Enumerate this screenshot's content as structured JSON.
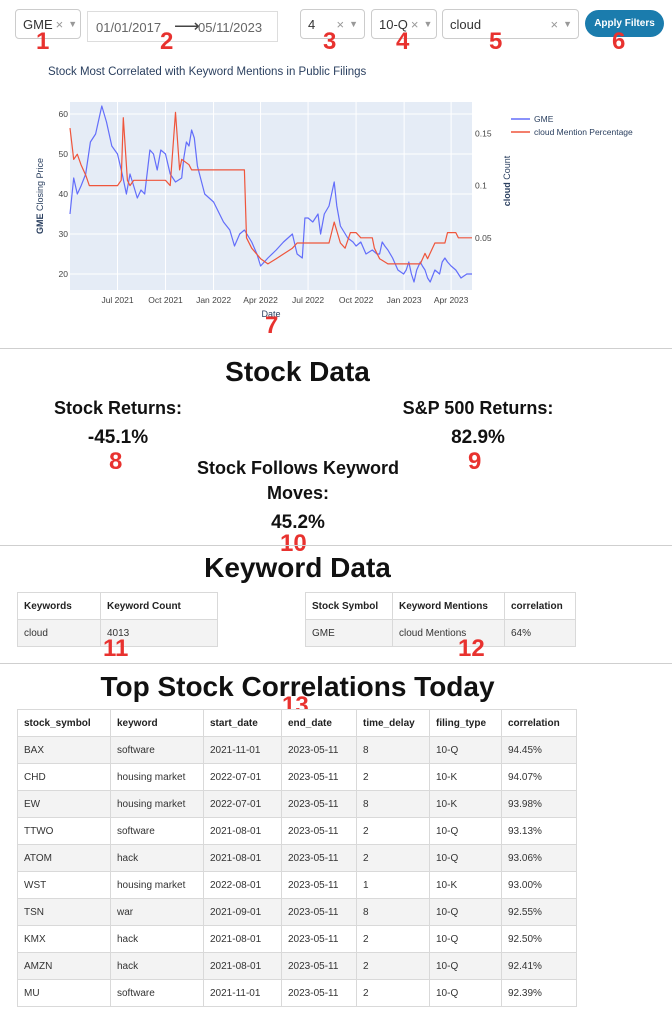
{
  "filters": {
    "ticker": "GME",
    "date_start": "01/01/2017",
    "date_end": "05/11/2023",
    "time_delay": "4",
    "filing_type": "10-Q",
    "keyword": "cloud",
    "apply_label": "Apply Filters"
  },
  "annotations": [
    "1",
    "2",
    "3",
    "4",
    "5",
    "6",
    "7",
    "8",
    "9",
    "10",
    "11",
    "12",
    "13"
  ],
  "chart": {
    "title": "Stock Most Correlated with Keyword Mentions in Public Filings",
    "xlabel": "Date",
    "ylabel_left": "GME Closing Price",
    "ylabel_right_bold": "cloud",
    "ylabel_right_rest": " Count",
    "legend": [
      "GME",
      "cloud Mention Percentage"
    ],
    "colors": {
      "gme": "#636efa",
      "cloud": "#ef553b",
      "plot_bg": "#e5ecf6"
    }
  },
  "chart_data": {
    "type": "line",
    "x_ticks": [
      "Jul 2021",
      "Oct 2021",
      "Jan 2022",
      "Apr 2022",
      "Jul 2022",
      "Oct 2022",
      "Jan 2023",
      "Apr 2023"
    ],
    "y_left_ticks": [
      "20",
      "30",
      "40",
      "50",
      "60"
    ],
    "y_right_ticks": [
      "0.05",
      "0.1",
      "0.15"
    ],
    "ylim_left": [
      16,
      63
    ],
    "ylim_right": [
      0.0,
      0.18
    ],
    "x_range": [
      "2021-04-01",
      "2023-05-11"
    ],
    "legend_position": "top-right",
    "series": [
      {
        "name": "GME",
        "axis": "left",
        "points": [
          [
            "2021-04-01",
            35
          ],
          [
            "2021-04-08",
            44
          ],
          [
            "2021-04-15",
            40
          ],
          [
            "2021-04-22",
            42
          ],
          [
            "2021-05-01",
            45
          ],
          [
            "2021-05-10",
            53
          ],
          [
            "2021-05-20",
            55
          ],
          [
            "2021-06-01",
            62
          ],
          [
            "2021-06-10",
            58
          ],
          [
            "2021-06-20",
            52
          ],
          [
            "2021-07-01",
            50
          ],
          [
            "2021-07-10",
            45
          ],
          [
            "2021-07-18",
            40
          ],
          [
            "2021-07-25",
            45
          ],
          [
            "2021-08-01",
            42
          ],
          [
            "2021-08-08",
            39
          ],
          [
            "2021-08-15",
            41
          ],
          [
            "2021-08-22",
            40
          ],
          [
            "2021-09-01",
            51
          ],
          [
            "2021-09-08",
            50
          ],
          [
            "2021-09-15",
            46
          ],
          [
            "2021-09-22",
            51
          ],
          [
            "2021-10-01",
            50
          ],
          [
            "2021-10-10",
            45
          ],
          [
            "2021-10-20",
            43
          ],
          [
            "2021-11-01",
            44
          ],
          [
            "2021-11-05",
            49
          ],
          [
            "2021-11-10",
            53
          ],
          [
            "2021-11-15",
            52
          ],
          [
            "2021-11-20",
            56
          ],
          [
            "2021-11-25",
            54
          ],
          [
            "2021-12-01",
            47
          ],
          [
            "2021-12-15",
            40
          ],
          [
            "2022-01-01",
            38
          ],
          [
            "2022-01-20",
            33
          ],
          [
            "2022-02-01",
            31
          ],
          [
            "2022-02-10",
            27
          ],
          [
            "2022-02-20",
            30
          ],
          [
            "2022-03-01",
            31
          ],
          [
            "2022-03-15",
            28
          ],
          [
            "2022-03-25",
            25
          ],
          [
            "2022-04-01",
            22
          ],
          [
            "2022-04-15",
            24
          ],
          [
            "2022-05-01",
            26
          ],
          [
            "2022-05-15",
            28
          ],
          [
            "2022-06-01",
            30
          ],
          [
            "2022-06-10",
            25
          ],
          [
            "2022-06-20",
            24
          ],
          [
            "2022-06-25",
            34
          ],
          [
            "2022-07-01",
            34
          ],
          [
            "2022-07-10",
            33
          ],
          [
            "2022-07-20",
            35
          ],
          [
            "2022-07-25",
            30
          ],
          [
            "2022-08-01",
            35
          ],
          [
            "2022-08-10",
            37
          ],
          [
            "2022-08-20",
            43
          ],
          [
            "2022-08-25",
            37
          ],
          [
            "2022-09-01",
            32
          ],
          [
            "2022-09-15",
            29
          ],
          [
            "2022-09-25",
            28
          ],
          [
            "2022-10-01",
            27
          ],
          [
            "2022-10-10",
            28
          ],
          [
            "2022-10-20",
            25
          ],
          [
            "2022-11-01",
            26
          ],
          [
            "2022-11-10",
            25
          ],
          [
            "2022-11-15",
            25
          ],
          [
            "2022-11-20",
            28
          ],
          [
            "2022-11-25",
            27
          ],
          [
            "2022-12-01",
            26
          ],
          [
            "2022-12-10",
            24
          ],
          [
            "2022-12-20",
            21
          ],
          [
            "2022-12-31",
            20
          ],
          [
            "2023-01-05",
            21
          ],
          [
            "2023-01-10",
            23
          ],
          [
            "2023-01-15",
            20
          ],
          [
            "2023-01-20",
            18
          ],
          [
            "2023-01-25",
            21
          ],
          [
            "2023-02-01",
            23
          ],
          [
            "2023-02-05",
            22
          ],
          [
            "2023-02-10",
            21
          ],
          [
            "2023-02-15",
            19
          ],
          [
            "2023-02-20",
            18
          ],
          [
            "2023-03-01",
            21
          ],
          [
            "2023-03-10",
            20
          ],
          [
            "2023-03-15",
            23
          ],
          [
            "2023-03-20",
            24
          ],
          [
            "2023-03-25",
            23
          ],
          [
            "2023-04-01",
            22
          ],
          [
            "2023-04-10",
            21
          ],
          [
            "2023-04-20",
            19
          ],
          [
            "2023-05-01",
            20
          ],
          [
            "2023-05-11",
            20
          ]
        ]
      },
      {
        "name": "cloud Mention Percentage",
        "axis": "right",
        "points": [
          [
            "2021-04-01",
            0.155
          ],
          [
            "2021-04-08",
            0.125
          ],
          [
            "2021-04-15",
            0.13
          ],
          [
            "2021-04-22",
            0.12
          ],
          [
            "2021-05-01",
            0.11
          ],
          [
            "2021-05-08",
            0.1
          ],
          [
            "2021-06-01",
            0.1
          ],
          [
            "2021-06-15",
            0.1
          ],
          [
            "2021-07-01",
            0.1
          ],
          [
            "2021-07-08",
            0.105
          ],
          [
            "2021-07-12",
            0.165
          ],
          [
            "2021-07-20",
            0.105
          ],
          [
            "2021-07-25",
            0.1
          ],
          [
            "2021-08-01",
            0.105
          ],
          [
            "2021-08-15",
            0.105
          ],
          [
            "2021-09-01",
            0.105
          ],
          [
            "2021-09-15",
            0.105
          ],
          [
            "2021-10-01",
            0.105
          ],
          [
            "2021-10-10",
            0.1
          ],
          [
            "2021-10-20",
            0.17
          ],
          [
            "2021-10-28",
            0.115
          ],
          [
            "2021-11-01",
            0.125
          ],
          [
            "2021-11-15",
            0.12
          ],
          [
            "2021-11-20",
            0.115
          ],
          [
            "2021-12-01",
            0.115
          ],
          [
            "2022-01-01",
            0.115
          ],
          [
            "2022-02-01",
            0.115
          ],
          [
            "2022-03-01",
            0.115
          ],
          [
            "2022-03-05",
            0.05
          ],
          [
            "2022-03-15",
            0.04
          ],
          [
            "2022-04-01",
            0.03
          ],
          [
            "2022-04-15",
            0.025
          ],
          [
            "2022-05-01",
            0.03
          ],
          [
            "2022-06-01",
            0.04
          ],
          [
            "2022-06-10",
            0.045
          ],
          [
            "2022-06-20",
            0.045
          ],
          [
            "2022-06-25",
            0.045
          ],
          [
            "2022-07-15",
            0.045
          ],
          [
            "2022-08-01",
            0.045
          ],
          [
            "2022-08-10",
            0.045
          ],
          [
            "2022-08-20",
            0.065
          ],
          [
            "2022-09-01",
            0.045
          ],
          [
            "2022-09-10",
            0.04
          ],
          [
            "2022-09-20",
            0.055
          ],
          [
            "2022-10-01",
            0.055
          ],
          [
            "2022-10-10",
            0.05
          ],
          [
            "2022-10-20",
            0.05
          ],
          [
            "2022-11-01",
            0.05
          ],
          [
            "2022-11-05",
            0.04
          ],
          [
            "2022-11-15",
            0.03
          ],
          [
            "2022-12-01",
            0.025
          ],
          [
            "2022-12-15",
            0.025
          ],
          [
            "2023-01-01",
            0.025
          ],
          [
            "2023-01-15",
            0.025
          ],
          [
            "2023-02-01",
            0.025
          ],
          [
            "2023-02-10",
            0.035
          ],
          [
            "2023-02-15",
            0.03
          ],
          [
            "2023-03-01",
            0.045
          ],
          [
            "2023-03-10",
            0.045
          ],
          [
            "2023-03-20",
            0.045
          ],
          [
            "2023-03-25",
            0.055
          ],
          [
            "2023-04-01",
            0.055
          ],
          [
            "2023-04-10",
            0.055
          ],
          [
            "2023-04-15",
            0.05
          ],
          [
            "2023-04-25",
            0.05
          ],
          [
            "2023-05-01",
            0.05
          ],
          [
            "2023-05-11",
            0.05
          ]
        ]
      }
    ]
  },
  "stock_data": {
    "heading": "Stock Data",
    "stock_returns_label": "Stock Returns:",
    "stock_returns_value": "-45.1%",
    "sp500_label": "S&P 500 Returns:",
    "sp500_value": "82.9%",
    "follows_label_line1": "Stock Follows Keyword",
    "follows_label_line2": "Moves:",
    "follows_value": "45.2%"
  },
  "keyword_data": {
    "heading": "Keyword Data",
    "table1": {
      "headers": [
        "Keywords",
        "Keyword Count"
      ],
      "rows": [
        [
          "cloud",
          "4013"
        ]
      ]
    },
    "table2": {
      "headers": [
        "Stock Symbol",
        "Keyword Mentions",
        "correlation"
      ],
      "rows": [
        [
          "GME",
          "cloud Mentions",
          "64%"
        ]
      ]
    }
  },
  "top_correlations": {
    "heading": "Top Stock Correlations Today",
    "headers": [
      "stock_symbol",
      "keyword",
      "start_date",
      "end_date",
      "time_delay",
      "filing_type",
      "correlation"
    ],
    "rows": [
      [
        "BAX",
        "software",
        "2021-11-01",
        "2023-05-11",
        "8",
        "10-Q",
        "94.45%"
      ],
      [
        "CHD",
        "housing market",
        "2022-07-01",
        "2023-05-11",
        "2",
        "10-K",
        "94.07%"
      ],
      [
        "EW",
        "housing market",
        "2022-07-01",
        "2023-05-11",
        "8",
        "10-K",
        "93.98%"
      ],
      [
        "TTWO",
        "software",
        "2021-08-01",
        "2023-05-11",
        "2",
        "10-Q",
        "93.13%"
      ],
      [
        "ATOM",
        "hack",
        "2021-08-01",
        "2023-05-11",
        "2",
        "10-Q",
        "93.06%"
      ],
      [
        "WST",
        "housing market",
        "2022-08-01",
        "2023-05-11",
        "1",
        "10-K",
        "93.00%"
      ],
      [
        "TSN",
        "war",
        "2021-09-01",
        "2023-05-11",
        "8",
        "10-Q",
        "92.55%"
      ],
      [
        "KMX",
        "hack",
        "2021-08-01",
        "2023-05-11",
        "2",
        "10-Q",
        "92.50%"
      ],
      [
        "AMZN",
        "hack",
        "2021-08-01",
        "2023-05-11",
        "2",
        "10-Q",
        "92.41%"
      ],
      [
        "MU",
        "software",
        "2021-11-01",
        "2023-05-11",
        "2",
        "10-Q",
        "92.39%"
      ]
    ]
  }
}
